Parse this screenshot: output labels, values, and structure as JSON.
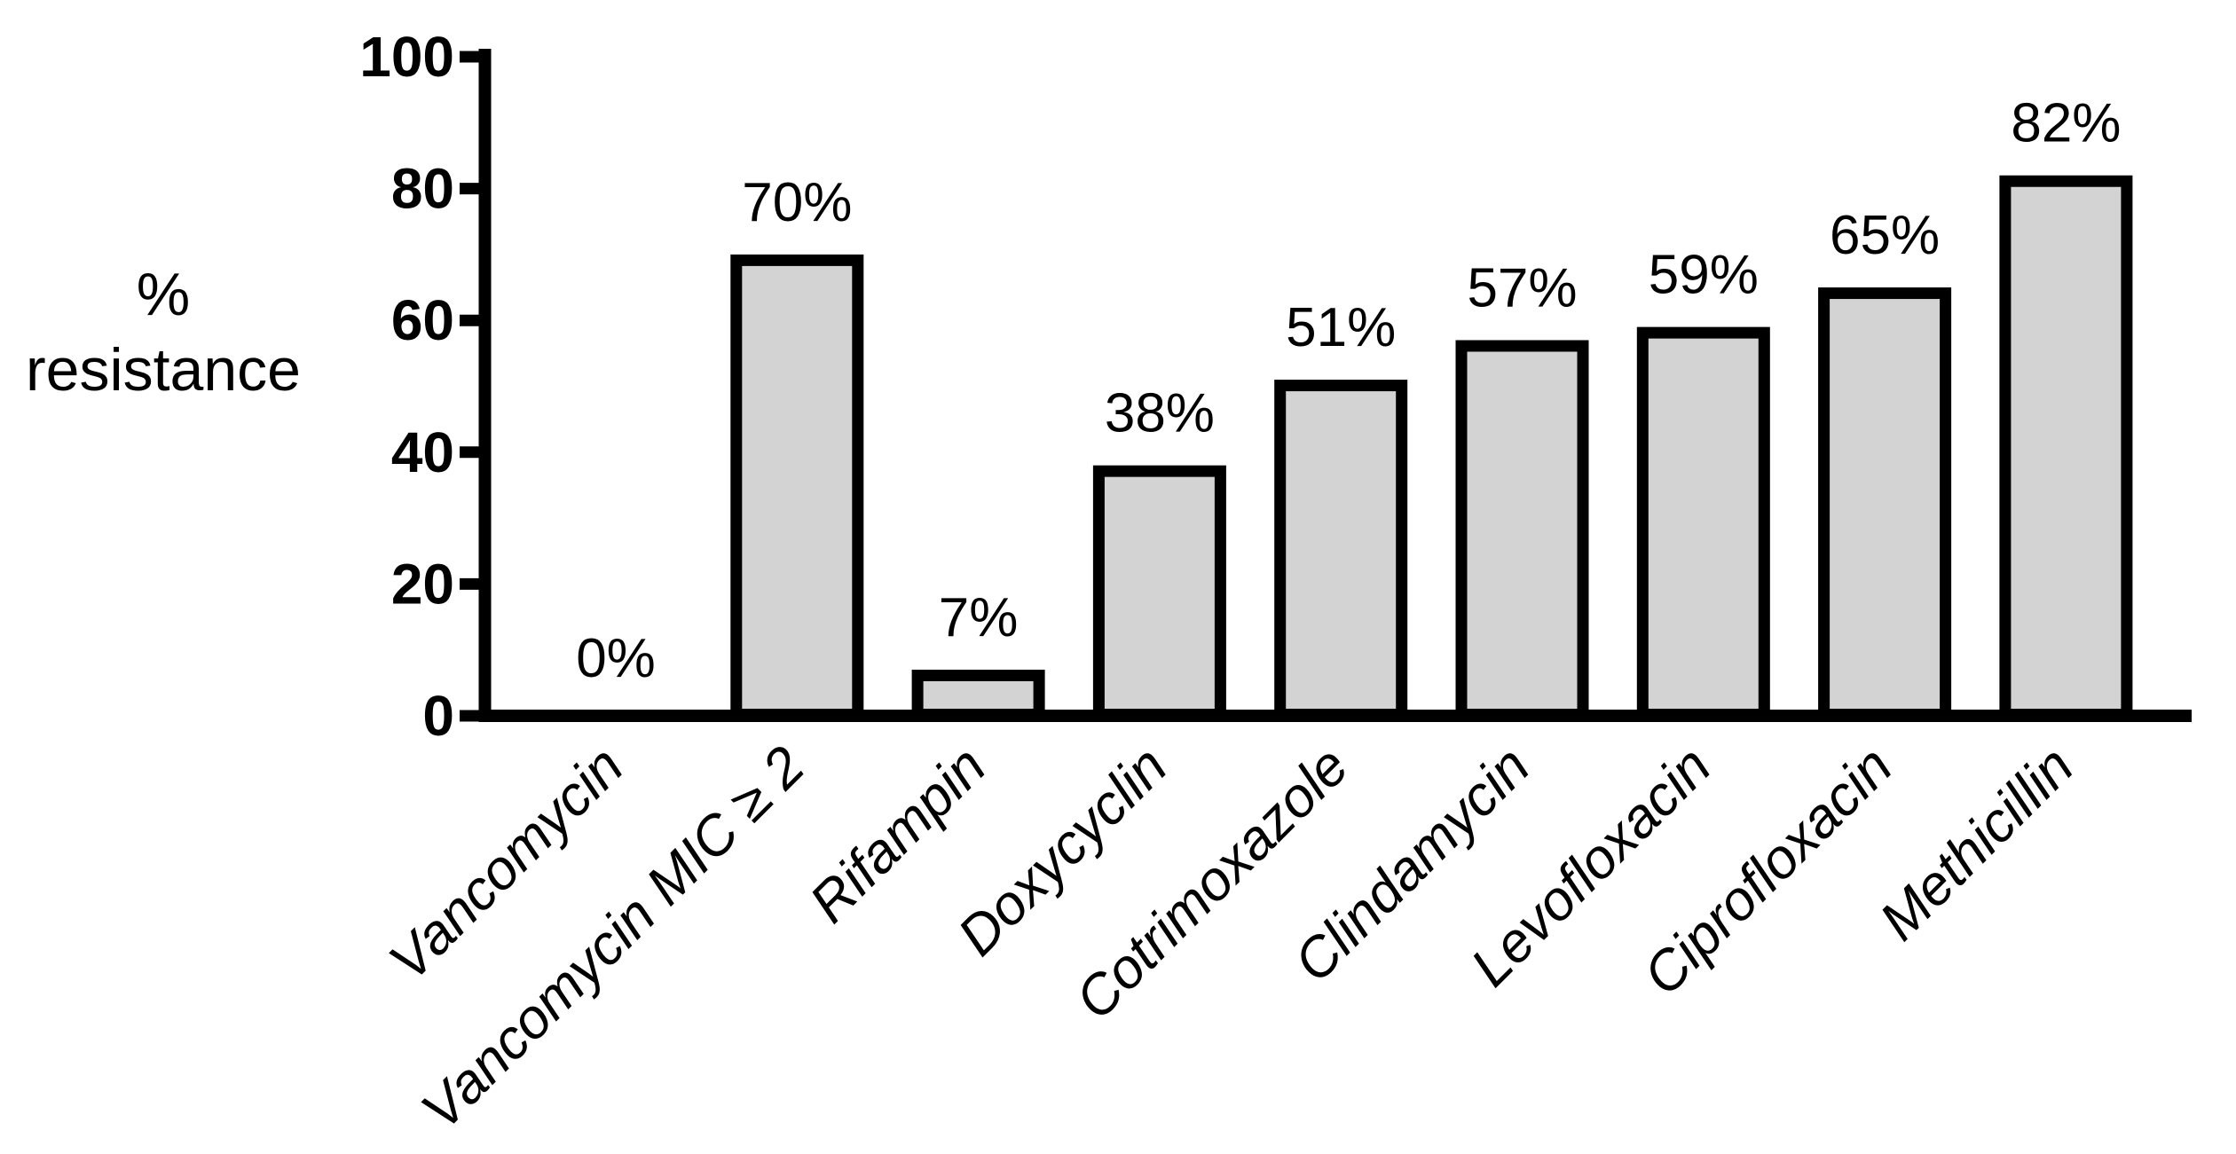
{
  "figure": {
    "background_color": "#ffffff"
  },
  "chart_data": {
    "type": "bar",
    "title": "",
    "ylabel_lines": [
      "%",
      "resistance"
    ],
    "categories": [
      "Vancomycin",
      "Vancomycin MIC ≥ 2",
      "Rifampin",
      "Doxycyclin",
      "Cotrimoxazole",
      "Clindamycin",
      "Levofloxacin",
      "Ciprofloxacin",
      "Methicillin"
    ],
    "values": [
      0,
      70,
      7,
      38,
      51,
      57,
      59,
      65,
      82
    ],
    "bar_labels": [
      "0%",
      "70%",
      "7%",
      "38%",
      "51%",
      "57%",
      "59%",
      "65%",
      "82%"
    ],
    "yticks": [
      0,
      20,
      40,
      60,
      80,
      100
    ],
    "ytick_labels": [
      "0",
      "20",
      "40",
      "60",
      "80",
      "100"
    ],
    "ylim": [
      0,
      100
    ],
    "xtick_rotation": 45,
    "grid": false,
    "legend": null,
    "bar_fill": "#d3d3d3",
    "bar_stroke": "#000000",
    "axis_color": "#000000",
    "text_color": "#000000"
  }
}
